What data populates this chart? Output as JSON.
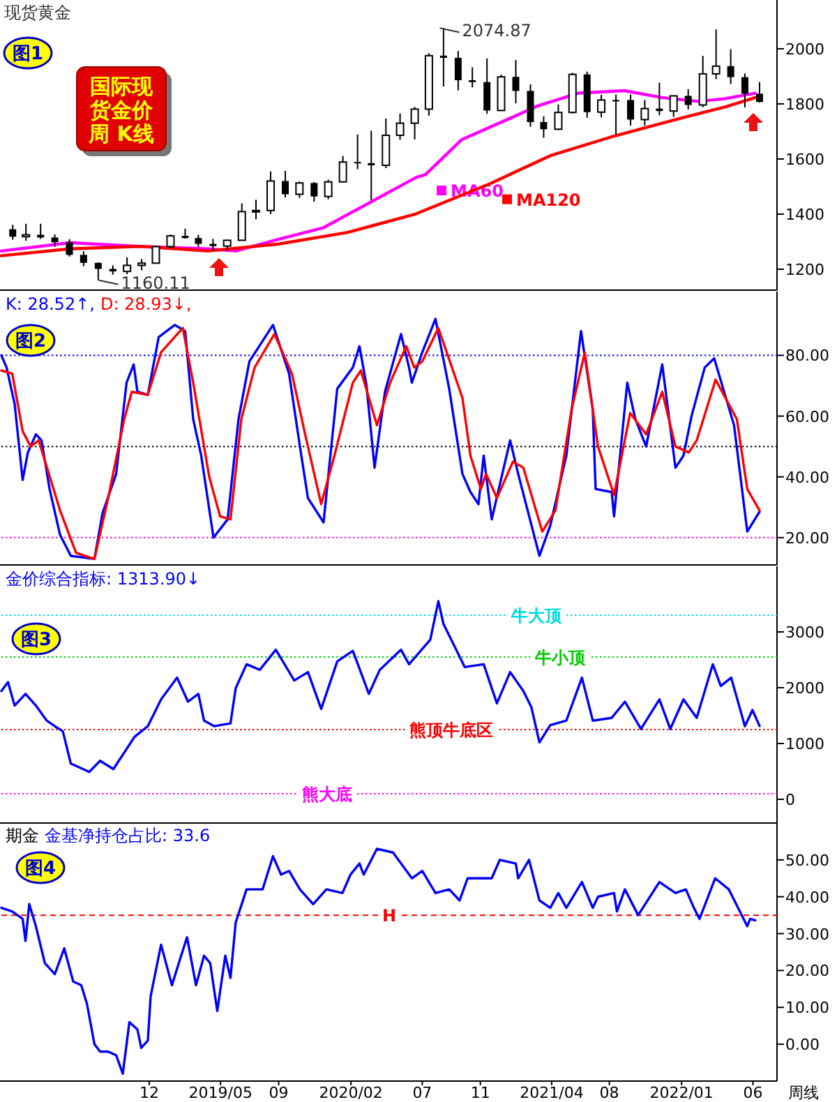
{
  "chart_data": [
    {
      "type": "candlestick",
      "title": "现货黄金",
      "xlim": [
        "2018-01-22",
        "2022-07-22"
      ],
      "ylim": [
        1124,
        2177
      ],
      "yticks": [
        1200,
        1400,
        1600,
        1800,
        2000
      ],
      "tick_labels": "y",
      "x": [
        "2018-02-15",
        "2018-03-15",
        "2018-04-15",
        "2018-05-15",
        "2018-06-15",
        "2018-07-15",
        "2018-08-15",
        "2018-09-15",
        "2018-10-15",
        "2018-11-15",
        "2018-12-15",
        "2019-01-15",
        "2019-02-15",
        "2019-03-15",
        "2019-04-15",
        "2019-05-15",
        "2019-06-15",
        "2019-07-15",
        "2019-08-15",
        "2019-09-15",
        "2019-10-15",
        "2019-11-15",
        "2019-12-15",
        "2020-01-15",
        "2020-02-15",
        "2020-03-15",
        "2020-04-15",
        "2020-05-15",
        "2020-06-15",
        "2020-07-15",
        "2020-08-15",
        "2020-09-15",
        "2020-10-15",
        "2020-11-15",
        "2020-12-15",
        "2021-01-15",
        "2021-02-15",
        "2021-03-15",
        "2021-04-15",
        "2021-05-15",
        "2021-06-15",
        "2021-07-15",
        "2021-08-15",
        "2021-09-15",
        "2021-10-15",
        "2021-11-15",
        "2021-12-15",
        "2022-01-15",
        "2022-02-15",
        "2022-03-15",
        "2022-04-15",
        "2022-05-15",
        "2022-06-15"
      ],
      "ohlc": [
        [
          1345,
          1361,
          1307,
          1318
        ],
        [
          1318,
          1365,
          1303,
          1325
        ],
        [
          1325,
          1365,
          1310,
          1315
        ],
        [
          1315,
          1326,
          1282,
          1298
        ],
        [
          1298,
          1309,
          1246,
          1252
        ],
        [
          1252,
          1265,
          1211,
          1223
        ],
        [
          1223,
          1225,
          1160.11,
          1201
        ],
        [
          1201,
          1214,
          1180,
          1192
        ],
        [
          1192,
          1243,
          1182,
          1214
        ],
        [
          1214,
          1237,
          1196,
          1222
        ],
        [
          1222,
          1284,
          1221,
          1282
        ],
        [
          1282,
          1326,
          1276,
          1321
        ],
        [
          1321,
          1347,
          1311,
          1313
        ],
        [
          1313,
          1325,
          1281,
          1292
        ],
        [
          1292,
          1310,
          1266,
          1284
        ],
        [
          1284,
          1306,
          1267,
          1305
        ],
        [
          1305,
          1439,
          1304,
          1409
        ],
        [
          1409,
          1452,
          1381,
          1413
        ],
        [
          1413,
          1555,
          1400,
          1520
        ],
        [
          1520,
          1557,
          1460,
          1472
        ],
        [
          1472,
          1518,
          1459,
          1513
        ],
        [
          1513,
          1516,
          1445,
          1464
        ],
        [
          1464,
          1525,
          1454,
          1517
        ],
        [
          1517,
          1611,
          1517,
          1589
        ],
        [
          1589,
          1689,
          1563,
          1585
        ],
        [
          1585,
          1703,
          1451,
          1577
        ],
        [
          1577,
          1747,
          1567,
          1686
        ],
        [
          1686,
          1765,
          1670,
          1730
        ],
        [
          1730,
          1789,
          1671,
          1781
        ],
        [
          1781,
          1984,
          1757,
          1975
        ],
        [
          1975,
          2074.87,
          1863,
          1967
        ],
        [
          1967,
          1992,
          1849,
          1886
        ],
        [
          1886,
          1933,
          1860,
          1879
        ],
        [
          1879,
          1965,
          1764,
          1776
        ],
        [
          1776,
          1906,
          1775,
          1898
        ],
        [
          1898,
          1959,
          1802,
          1847
        ],
        [
          1847,
          1871,
          1717,
          1734
        ],
        [
          1734,
          1755,
          1677,
          1708
        ],
        [
          1708,
          1798,
          1705,
          1769
        ],
        [
          1769,
          1913,
          1765,
          1907
        ],
        [
          1907,
          1917,
          1750,
          1770
        ],
        [
          1770,
          1833,
          1751,
          1814
        ],
        [
          1814,
          1834,
          1688,
          1814
        ],
        [
          1814,
          1834,
          1721,
          1743
        ],
        [
          1743,
          1814,
          1721,
          1783
        ],
        [
          1783,
          1877,
          1759,
          1774
        ],
        [
          1774,
          1831,
          1753,
          1829
        ],
        [
          1829,
          1853,
          1780,
          1796
        ],
        [
          1796,
          1974,
          1788,
          1909
        ],
        [
          1909,
          2070,
          1890,
          1937
        ],
        [
          1937,
          1998,
          1872,
          1897
        ],
        [
          1897,
          1910,
          1787,
          1837
        ],
        [
          1837,
          1879,
          1805,
          1807
        ]
      ],
      "series": [
        {
          "type": "line",
          "name": "MA60",
          "color": "#ff00ff",
          "x": [
            "2018-01-22",
            "2018-06-16",
            "2018-11-10",
            "2019-04-04",
            "2019-06-02",
            "2019-08-30",
            "2019-12-04",
            "2020-03-13",
            "2020-06-18",
            "2020-07-08",
            "2020-09-23",
            "2021-01-02",
            "2021-03-01",
            "2021-05-27",
            "2021-09-02",
            "2021-11-20",
            "2022-02-05",
            "2022-04-03",
            "2022-06-06"
          ],
          "values": [
            1266,
            1296,
            1283,
            1274,
            1266,
            1308,
            1350,
            1443,
            1533,
            1544,
            1671,
            1747,
            1792,
            1839,
            1848,
            1823,
            1809,
            1819,
            1839
          ]
        },
        {
          "type": "line",
          "name": "MA120",
          "color": "#ff0000",
          "x": [
            "2018-01-22",
            "2018-06-16",
            "2018-11-10",
            "2019-04-04",
            "2019-08-30",
            "2020-01-24",
            "2020-06-18",
            "2020-11-21",
            "2021-03-29",
            "2021-08-03",
            "2021-12-28",
            "2022-04-03",
            "2022-06-06"
          ],
          "values": [
            1249,
            1274,
            1283,
            1266,
            1291,
            1333,
            1401,
            1510,
            1612,
            1679,
            1747,
            1789,
            1823
          ]
        }
      ],
      "legend": "center",
      "annotations": [
        "图1",
        "国际现货金价周 K线",
        {
          "text": "2074.87",
          "x": "2020-08-07",
          "y": 2074.87
        },
        {
          "text": "1160.11",
          "x": "2018-08-16",
          "y": 1160.11
        }
      ]
    },
    {
      "type": "line",
      "xlim": [
        "2018-01-22",
        "2022-07-22"
      ],
      "ylim": [
        11,
        101
      ],
      "yticks": [
        {
          "value": 20,
          "label": "20.00"
        },
        {
          "value": 40,
          "label": "40.00"
        },
        {
          "value": 60,
          "label": "60.00"
        },
        {
          "value": 80,
          "label": "80.00"
        }
      ],
      "tick_labels": "y",
      "series": [
        {
          "color": "#0000ff",
          "x": [
            "2018-01-22",
            "2018-02-02",
            "2018-02-19",
            "2018-03-08",
            "2018-03-19",
            "2018-04-05",
            "2018-04-17",
            "2018-05-04",
            "2018-05-26",
            "2018-06-18",
            "2018-08-07",
            "2018-08-24",
            "2018-09-22",
            "2018-10-14",
            "2018-10-29",
            "2018-11-06",
            "2018-11-28",
            "2018-12-21",
            "2019-01-24",
            "2019-02-15",
            "2019-03-04",
            "2019-03-21",
            "2019-04-16",
            "2019-05-16",
            "2019-06-08",
            "2019-07-01",
            "2019-08-20",
            "2019-09-23",
            "2019-10-16",
            "2019-11-02",
            "2019-12-05",
            "2020-01-03",
            "2020-02-05",
            "2020-02-19",
            "2020-03-05",
            "2020-03-22",
            "2020-04-13",
            "2020-05-17",
            "2020-06-03",
            "2020-06-09",
            "2020-07-01",
            "2020-07-29",
            "2020-08-27",
            "2020-09-24",
            "2020-10-11",
            "2020-10-28",
            "2020-11-08",
            "2020-11-25",
            "2021-01-03",
            "2021-01-20",
            "2021-03-06",
            "2021-03-29",
            "2021-05-02",
            "2021-06-02",
            "2021-06-27",
            "2021-07-03",
            "2021-08-06",
            "2021-08-11",
            "2021-09-08",
            "2021-09-25",
            "2021-10-18",
            "2021-11-21",
            "2021-12-19",
            "2022-01-05",
            "2022-01-22",
            "2022-02-19",
            "2022-03-11",
            "2022-04-22",
            "2022-05-20",
            "2022-06-15"
          ],
          "values": [
            80,
            76,
            64,
            39,
            48,
            54,
            52,
            36,
            21,
            14,
            13,
            28,
            41,
            71,
            77,
            68,
            67,
            86,
            90,
            88,
            59,
            47,
            20,
            26,
            59,
            78,
            90,
            74,
            50,
            33,
            25,
            69,
            76,
            83,
            70,
            43,
            68,
            87,
            76,
            71,
            81,
            92,
            69,
            41,
            35,
            31,
            47,
            26,
            52,
            41,
            14,
            24,
            47,
            88,
            62,
            36,
            35,
            27,
            71,
            59,
            50,
            77,
            43,
            47,
            60,
            76,
            79,
            57,
            22,
            28.52
          ]
        },
        {
          "color": "#ff0000",
          "x": [
            "2018-01-22",
            "2018-02-14",
            "2018-03-08",
            "2018-03-25",
            "2018-04-11",
            "2018-05-26",
            "2018-06-29",
            "2018-08-07",
            "2018-09-05",
            "2018-10-09",
            "2018-10-25",
            "2018-11-28",
            "2018-12-26",
            "2019-02-10",
            "2019-03-04",
            "2019-04-07",
            "2019-04-30",
            "2019-05-22",
            "2019-06-14",
            "2019-07-12",
            "2019-08-23",
            "2019-09-29",
            "2019-10-27",
            "2019-11-30",
            "2019-12-28",
            "2020-02-05",
            "2020-02-22",
            "2020-03-27",
            "2020-04-24",
            "2020-05-28",
            "2020-06-14",
            "2020-07-01",
            "2020-08-04",
            "2020-09-24",
            "2020-10-11",
            "2020-11-02",
            "2020-11-13",
            "2020-12-06",
            "2021-01-09",
            "2021-01-31",
            "2021-03-12",
            "2021-04-09",
            "2021-05-13",
            "2021-06-10",
            "2021-07-08",
            "2021-08-11",
            "2021-09-14",
            "2021-10-18",
            "2021-11-21",
            "2021-12-19",
            "2022-01-16",
            "2022-02-02",
            "2022-03-14",
            "2022-04-28",
            "2022-05-20",
            "2022-06-15"
          ],
          "values": [
            75,
            74,
            55,
            50,
            52,
            29,
            15,
            13,
            33,
            59,
            68,
            67,
            81,
            89,
            71,
            40,
            27,
            26,
            59,
            76,
            87,
            74,
            54,
            31,
            47,
            71,
            75,
            57,
            71,
            83,
            76,
            78,
            89,
            66,
            47,
            36,
            41,
            33,
            45,
            43,
            22,
            29,
            62,
            81,
            50,
            34,
            61,
            54,
            68,
            50,
            48,
            52,
            72,
            59,
            36,
            28.93
          ]
        }
      ],
      "ref_lines": [
        {
          "axis": "y",
          "value": 80,
          "color": "#0000ff",
          "line_style": "dotted"
        },
        {
          "axis": "y",
          "value": 50,
          "color": "#000000",
          "line_style": "dotted"
        },
        {
          "axis": "y",
          "value": 20,
          "color": "#ff00ff",
          "line_style": "dotted"
        }
      ],
      "annotations": [
        "K: 28.52↑,",
        "D: 28.93↓,",
        "图2"
      ]
    },
    {
      "type": "line",
      "xlim": [
        "2018-01-22",
        "2022-07-22"
      ],
      "ylim": [
        -425,
        4175
      ],
      "yticks": [
        0,
        1000,
        2000,
        3000
      ],
      "tick_labels": "y",
      "series": [
        {
          "color": "#0000ff",
          "x": [
            "2018-01-22",
            "2018-02-05",
            "2018-02-19",
            "2018-03-14",
            "2018-04-05",
            "2018-04-28",
            "2018-05-15",
            "2018-06-01",
            "2018-06-18",
            "2018-07-27",
            "2018-08-19",
            "2018-09-16",
            "2018-10-31",
            "2018-11-28",
            "2018-12-26",
            "2019-01-29",
            "2019-02-21",
            "2019-03-15",
            "2019-03-27",
            "2019-04-18",
            "2019-05-22",
            "2019-06-02",
            "2019-06-25",
            "2019-07-23",
            "2019-08-26",
            "2019-10-04",
            "2019-11-02",
            "2019-11-30",
            "2020-01-03",
            "2020-02-05",
            "2020-03-10",
            "2020-04-02",
            "2020-05-17",
            "2020-06-03",
            "2020-07-18",
            "2020-08-04",
            "2020-08-15",
            "2020-09-29",
            "2020-11-08",
            "2020-12-06",
            "2021-01-03",
            "2021-01-31",
            "2021-02-17",
            "2021-03-06",
            "2021-03-29",
            "2021-05-02",
            "2021-06-04",
            "2021-06-27",
            "2021-08-06",
            "2021-09-03",
            "2021-10-07",
            "2021-11-15",
            "2021-12-08",
            "2022-01-05",
            "2022-02-02",
            "2022-03-08",
            "2022-03-25",
            "2022-04-16",
            "2022-05-15",
            "2022-05-31",
            "2022-06-15"
          ],
          "values": [
            1940,
            2100,
            1680,
            1890,
            1680,
            1410,
            1310,
            1220,
            640,
            490,
            690,
            540,
            1120,
            1310,
            1790,
            2180,
            1750,
            1890,
            1410,
            1310,
            1360,
            1990,
            2420,
            2320,
            2680,
            2130,
            2280,
            1620,
            2470,
            2660,
            1890,
            2320,
            2680,
            2420,
            2860,
            3550,
            3140,
            2370,
            2420,
            1720,
            2280,
            1940,
            1650,
            1020,
            1330,
            1410,
            2180,
            1410,
            1460,
            1750,
            1260,
            1790,
            1260,
            1790,
            1460,
            2420,
            2030,
            2180,
            1310,
            1600,
            1313.9
          ]
        }
      ],
      "ref_lines": [
        {
          "axis": "y",
          "value": 3300,
          "color": "#00dddd",
          "line_style": "dotted",
          "label": "牛大顶"
        },
        {
          "axis": "y",
          "value": 2550,
          "color": "#00cc00",
          "line_style": "dotted",
          "label": "牛小顶"
        },
        {
          "axis": "y",
          "value": 1250,
          "color": "#ff0000",
          "line_style": "dotted",
          "label": "熊顶牛底区"
        },
        {
          "axis": "y",
          "value": 100,
          "color": "#ff00ff",
          "line_style": "dotted",
          "label": "熊大底"
        }
      ],
      "annotations": [
        "金价综合指标: 1313.90↓",
        "图3"
      ]
    },
    {
      "type": "line",
      "xlim": [
        "2018-01-22",
        "2022-07-22"
      ],
      "ylim": [
        -10,
        60
      ],
      "yticks": [
        {
          "value": 0,
          "label": "0.00"
        },
        {
          "value": 10,
          "label": "10.00"
        },
        {
          "value": 20,
          "label": "20.00"
        },
        {
          "value": 30,
          "label": "30.00"
        },
        {
          "value": 40,
          "label": "40.00"
        },
        {
          "value": 50,
          "label": "50.00"
        }
      ],
      "xticks": [
        {
          "value": "2018-12-01",
          "label": "12"
        },
        {
          "value": "2019-05-01",
          "label": "2019/05"
        },
        {
          "value": "2019-09-01",
          "label": "09"
        },
        {
          "value": "2020-02-01",
          "label": "2020/02"
        },
        {
          "value": "2020-07-01",
          "label": "07"
        },
        {
          "value": "2020-11-01",
          "label": "11"
        },
        {
          "value": "2021-04-01",
          "label": "2021/04"
        },
        {
          "value": "2021-08-01",
          "label": "08"
        },
        {
          "value": "2022-01-01",
          "label": "2022/01"
        },
        {
          "value": "2022-06-01",
          "label": "06"
        }
      ],
      "series": [
        {
          "color": "#0000ff",
          "x": [
            "2018-01-22",
            "2018-02-14",
            "2018-03-08",
            "2018-03-14",
            "2018-03-22",
            "2018-04-05",
            "2018-04-24",
            "2018-05-15",
            "2018-06-04",
            "2018-06-23",
            "2018-07-10",
            "2018-07-22",
            "2018-08-07",
            "2018-08-19",
            "2018-09-05",
            "2018-09-22",
            "2018-10-06",
            "2018-10-20",
            "2018-11-06",
            "2018-11-14",
            "2018-11-28",
            "2018-12-04",
            "2018-12-26",
            "2019-01-18",
            "2019-02-04",
            "2019-02-19",
            "2019-03-10",
            "2019-03-27",
            "2019-04-09",
            "2019-04-24",
            "2019-05-11",
            "2019-05-22",
            "2019-06-02",
            "2019-06-25",
            "2019-07-29",
            "2019-08-20",
            "2019-09-06",
            "2019-09-23",
            "2019-10-16",
            "2019-11-13",
            "2019-12-11",
            "2020-01-14",
            "2020-01-31",
            "2020-02-19",
            "2020-02-28",
            "2020-03-27",
            "2020-04-30",
            "2020-06-09",
            "2020-07-01",
            "2020-07-29",
            "2020-08-27",
            "2020-09-18",
            "2020-10-05",
            "2020-11-25",
            "2020-12-12",
            "2021-01-15",
            "2021-01-20",
            "2021-02-12",
            "2021-03-06",
            "2021-03-29",
            "2021-04-15",
            "2021-05-02",
            "2021-06-04",
            "2021-06-27",
            "2021-07-08",
            "2021-08-11",
            "2021-08-17",
            "2021-09-03",
            "2021-10-01",
            "2021-11-15",
            "2021-12-19",
            "2022-01-10",
            "2022-01-27",
            "2022-02-08",
            "2022-03-13",
            "2022-04-11",
            "2022-05-20",
            "2022-05-26",
            "2022-06-06"
          ],
          "values": [
            37,
            36,
            34,
            28,
            38,
            32,
            22,
            19,
            26,
            17,
            16,
            11,
            0,
            -2,
            -2,
            -3,
            -8,
            6,
            4,
            -1,
            1,
            13,
            27,
            16,
            23,
            29,
            16,
            24,
            22,
            9,
            24,
            18,
            33,
            42,
            42,
            51,
            46,
            47,
            42,
            38,
            42,
            41,
            46,
            49,
            46,
            53,
            52,
            45,
            47,
            41,
            42,
            39,
            45,
            45,
            50,
            49,
            45,
            50,
            39,
            37,
            41,
            37,
            44,
            37,
            40,
            41,
            36,
            42,
            35,
            44,
            41,
            42,
            37,
            34,
            45,
            42,
            32,
            34,
            33.6
          ]
        }
      ],
      "ref_lines": [
        {
          "axis": "y",
          "value": 35,
          "color": "#ff0000",
          "line_style": "dashed",
          "label": "H"
        }
      ],
      "annotations": [
        "期金",
        "金基净持仓占比: 33.6",
        "图4",
        "周线"
      ]
    }
  ]
}
